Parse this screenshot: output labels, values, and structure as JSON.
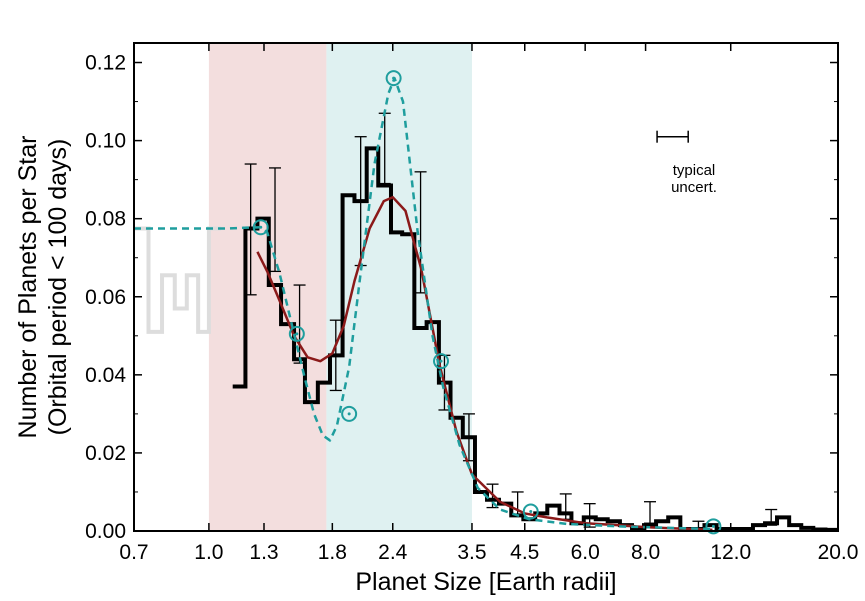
{
  "chart_data": {
    "type": "line",
    "xscale": "log",
    "xlim": [
      0.7,
      20.0
    ],
    "ylim": [
      0.0,
      0.125
    ],
    "xlabel": "Planet Size [Earth radii]",
    "ylabel_line1": "Number of Planets per Star",
    "ylabel_line2": "(Orbital period < 100 days)",
    "x_ticks": [
      0.7,
      1.0,
      1.3,
      1.8,
      2.4,
      3.5,
      4.5,
      6.0,
      8.0,
      12.0,
      20.0
    ],
    "x_tick_labels": [
      "0.7",
      "1.0",
      "1.3",
      "1.8",
      "2.4",
      "3.5",
      "4.5",
      "6.0",
      "8.0",
      "12.0",
      "20.0"
    ],
    "y_ticks": [
      0.0,
      0.02,
      0.04,
      0.06,
      0.08,
      0.1,
      0.12
    ],
    "y_tick_labels": [
      "0.00",
      "0.02",
      "0.04",
      "0.06",
      "0.08",
      "0.10",
      "0.12"
    ],
    "shaded_regions": [
      {
        "x0": 1.0,
        "x1": 1.75,
        "color": "#f3dede"
      },
      {
        "x0": 1.75,
        "x1": 3.5,
        "color": "#dff1f1"
      }
    ],
    "series": [
      {
        "style": "histogram-gray",
        "color": "#dddddd",
        "edges": [
          0.7,
          0.75,
          0.8,
          0.85,
          0.9,
          0.95,
          1.0,
          1.06
        ],
        "values": [
          0.0775,
          0.051,
          0.0655,
          0.057,
          0.0655,
          0.051,
          0.0775
        ]
      },
      {
        "style": "histogram",
        "color": "#000000",
        "edges": [
          1.12,
          1.19,
          1.26,
          1.33,
          1.41,
          1.5,
          1.58,
          1.68,
          1.78,
          1.89,
          2.0,
          2.12,
          2.24,
          2.38,
          2.51,
          2.66,
          2.82,
          2.99,
          3.16,
          3.35,
          3.55,
          3.76,
          3.98,
          4.22,
          4.47,
          4.73,
          5.01,
          5.31,
          5.62,
          5.96,
          6.31,
          6.68,
          7.08,
          7.5,
          7.94,
          8.41,
          8.91,
          9.44,
          10.0,
          10.59,
          11.22,
          11.89,
          12.59,
          13.34,
          14.13,
          14.96,
          15.85,
          16.79,
          17.78,
          18.84,
          19.95
        ],
        "values": [
          0.037,
          0.0775,
          0.08,
          0.063,
          0.053,
          0.044,
          0.033,
          0.038,
          0.045,
          0.086,
          0.0845,
          0.098,
          0.0885,
          0.0765,
          0.076,
          0.052,
          0.0535,
          0.038,
          0.029,
          0.024,
          0.01,
          0.008,
          0.007,
          0.004,
          0.003,
          0.0045,
          0.0065,
          0.0045,
          0.002,
          0.0035,
          0.003,
          0.0025,
          0.0015,
          0.0005,
          0.0015,
          0.0025,
          0.0035,
          0.0005,
          0.0005,
          0.0015,
          0.0005,
          0.0005,
          0.0005,
          0.0015,
          0.002,
          0.0035,
          0.0015,
          0.0008,
          0.0004,
          0.0003
        ]
      },
      {
        "style": "errorbars",
        "color": "#000000",
        "points": [
          {
            "x": 1.22,
            "y": 0.0775,
            "lo": 0.0605,
            "hi": 0.094
          },
          {
            "x": 1.37,
            "y": 0.08,
            "lo": 0.0665,
            "hi": 0.093
          },
          {
            "x": 1.54,
            "y": 0.053,
            "lo": 0.043,
            "hi": 0.063
          },
          {
            "x": 1.83,
            "y": 0.045,
            "lo": 0.036,
            "hi": 0.054
          },
          {
            "x": 2.06,
            "y": 0.0845,
            "lo": 0.068,
            "hi": 0.101
          },
          {
            "x": 2.31,
            "y": 0.098,
            "lo": 0.089,
            "hi": 0.107
          },
          {
            "x": 2.74,
            "y": 0.0765,
            "lo": 0.061,
            "hi": 0.092
          },
          {
            "x": 3.07,
            "y": 0.038,
            "lo": 0.031,
            "hi": 0.045
          },
          {
            "x": 3.45,
            "y": 0.024,
            "lo": 0.018,
            "hi": 0.03
          },
          {
            "x": 3.86,
            "y": 0.009,
            "lo": 0.006,
            "hi": 0.012
          },
          {
            "x": 4.35,
            "y": 0.007,
            "lo": 0.004,
            "hi": 0.01
          },
          {
            "x": 5.47,
            "y": 0.0065,
            "lo": 0.003,
            "hi": 0.0095
          },
          {
            "x": 6.13,
            "y": 0.004,
            "lo": 0.001,
            "hi": 0.007
          },
          {
            "x": 8.17,
            "y": 0.0045,
            "lo": 0.002,
            "hi": 0.0075
          },
          {
            "x": 10.29,
            "y": 0.0015,
            "lo": 0.0005,
            "hi": 0.0025
          },
          {
            "x": 14.55,
            "y": 0.0035,
            "lo": 0.0015,
            "hi": 0.0055
          }
        ]
      },
      {
        "style": "smooth",
        "color": "#8b1a1a",
        "x": [
          1.26,
          1.32,
          1.4,
          1.5,
          1.6,
          1.7,
          1.8,
          1.9,
          2.0,
          2.15,
          2.3,
          2.4,
          2.55,
          2.75,
          3.0,
          3.25,
          3.5,
          4.0,
          4.5,
          5.0,
          6.0,
          7.0,
          8.0,
          9.0,
          10.0,
          11.0
        ],
        "y": [
          0.0715,
          0.0665,
          0.059,
          0.05,
          0.0445,
          0.0435,
          0.0455,
          0.0525,
          0.064,
          0.0775,
          0.0845,
          0.0855,
          0.082,
          0.067,
          0.0425,
          0.0255,
          0.0145,
          0.0075,
          0.0045,
          0.0035,
          0.002,
          0.0015,
          0.001,
          0.0007,
          0.0005,
          0.0003
        ]
      },
      {
        "style": "dashed",
        "color": "#1f9e9e",
        "x": [
          0.7,
          0.9,
          1.1,
          1.2,
          1.28,
          1.32,
          1.4,
          1.5,
          1.58,
          1.65,
          1.72,
          1.78,
          1.84,
          1.95,
          2.05,
          2.2,
          2.35,
          2.42,
          2.52,
          2.7,
          2.9,
          3.05,
          3.3,
          3.6,
          4.0,
          4.6,
          5.5,
          7.0,
          9.0,
          11.0
        ],
        "y": [
          0.0775,
          0.0775,
          0.0775,
          0.0777,
          0.0778,
          0.0765,
          0.066,
          0.0505,
          0.039,
          0.03,
          0.0245,
          0.0232,
          0.027,
          0.042,
          0.064,
          0.094,
          0.112,
          0.116,
          0.11,
          0.077,
          0.05,
          0.037,
          0.022,
          0.011,
          0.0055,
          0.003,
          0.0018,
          0.0012,
          0.0008,
          0.0005
        ]
      },
      {
        "style": "circles",
        "color": "#1f9e9e",
        "points": [
          {
            "x": 1.28,
            "y": 0.0778
          },
          {
            "x": 1.52,
            "y": 0.0505
          },
          {
            "x": 1.95,
            "y": 0.03
          },
          {
            "x": 2.41,
            "y": 0.116
          },
          {
            "x": 3.02,
            "y": 0.0435
          },
          {
            "x": 4.63,
            "y": 0.005
          },
          {
            "x": 11.05,
            "y": 0.0012
          }
        ]
      }
    ],
    "annotation": {
      "line1": "typical",
      "line2": "uncert.",
      "x": 9.1,
      "y": 0.101,
      "half_width": 0.7
    }
  }
}
